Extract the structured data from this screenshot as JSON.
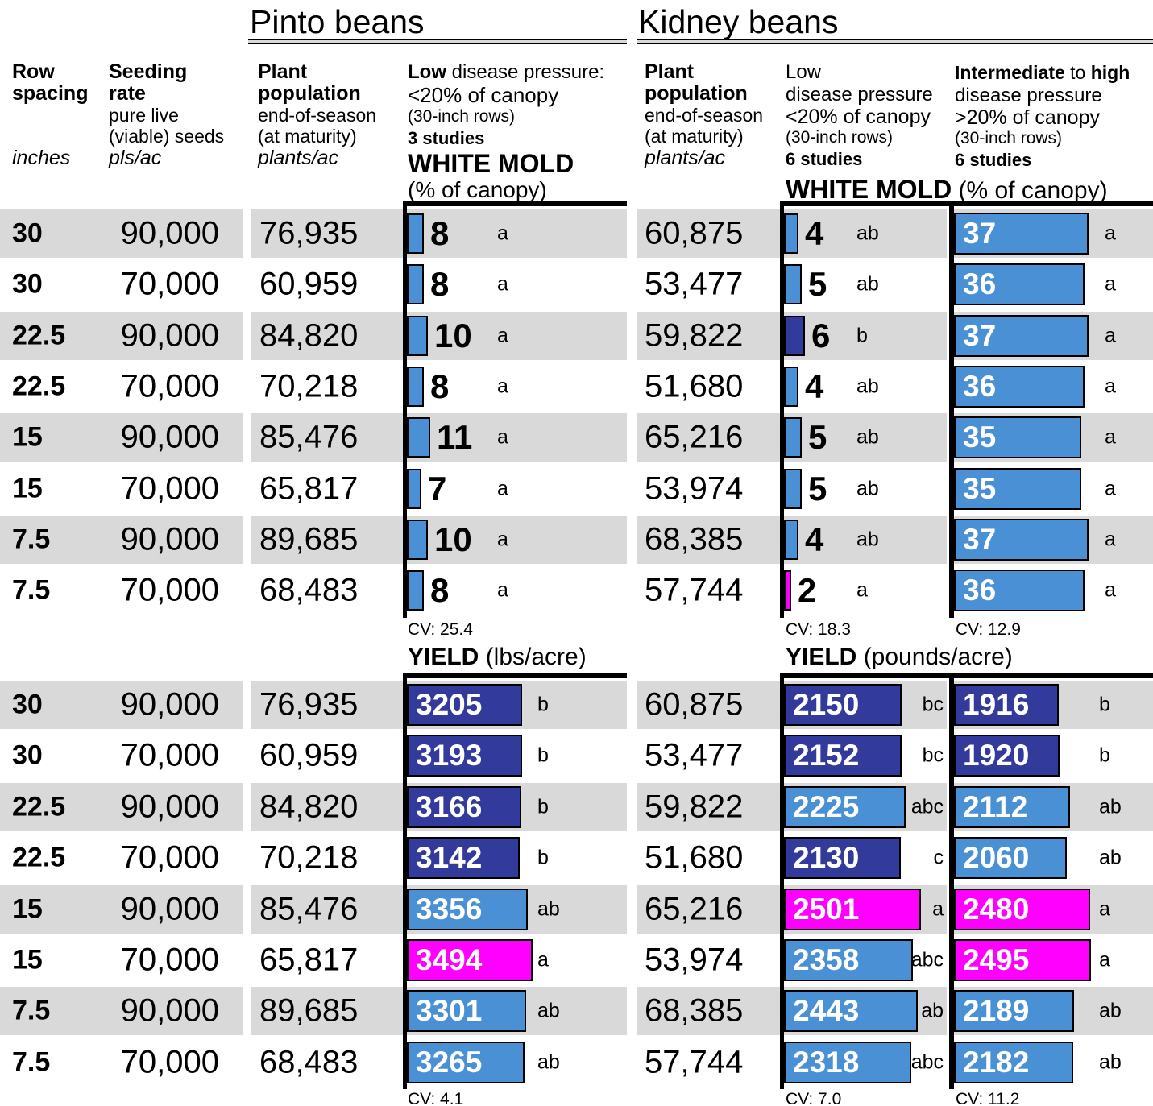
{
  "titles": {
    "pinto": "Pinto beans",
    "kidney": "Kidney beans"
  },
  "headers": {
    "col_spacing": {
      "l1": "Row",
      "l2": "spacing",
      "unit": "inches"
    },
    "col_rate": {
      "l1": "Seeding",
      "l2": "rate",
      "s1": "pure live",
      "s2": "(viable) seeds",
      "unit": "pls/ac"
    },
    "col_pop": {
      "l1": "Plant",
      "l2": "population",
      "s1": "end-of-season",
      "s2": "(at maturity)",
      "unit": "plants/ac"
    },
    "pinto_chart": {
      "b": "Low",
      "r": " disease pressure:",
      "canopy": "<20% of canopy",
      "rows": "(30-inch rows)",
      "studies": "3 studies",
      "wm_b": "WHITE MOLD",
      "wm_r": "(% of canopy)"
    },
    "kidney_low": {
      "b": "Low",
      "l2": "disease pressure",
      "canopy": "<20% of canopy",
      "rows": "(30-inch rows)",
      "studies": "6 studies"
    },
    "kidney_high": {
      "b1": "Intermediate",
      "r1": " to ",
      "b2": "high",
      "l2": "disease pressure",
      "canopy": ">20% of canopy",
      "rows": "(30-inch rows)",
      "studies": "6 studies"
    },
    "kidney_wm_title": {
      "b": "WHITE MOLD",
      "r": " (% of canopy)"
    },
    "yield_pinto": {
      "b": "YIELD",
      "r": " (lbs/acre)"
    },
    "yield_kidney": {
      "b": "YIELD",
      "r": " (pounds/acre)"
    }
  },
  "colors": {
    "blue": "#4a90d5",
    "navy": "#323a9c",
    "magenta": "#ff00ff",
    "stripe": "#d9d9d9",
    "bar_border": "#000000"
  },
  "chart_data": {
    "type": "bar",
    "row_labels": {
      "spacing": [
        "30",
        "30",
        "22.5",
        "22.5",
        "15",
        "15",
        "7.5",
        "7.5"
      ],
      "rate": [
        "90,000",
        "70,000",
        "90,000",
        "70,000",
        "90,000",
        "70,000",
        "90,000",
        "70,000"
      ]
    },
    "pinto_population": [
      "76,935",
      "60,959",
      "84,820",
      "70,218",
      "85,476",
      "65,817",
      "89,685",
      "68,483"
    ],
    "kidney_population": [
      "60,875",
      "53,477",
      "59,822",
      "51,680",
      "65,216",
      "53,974",
      "68,385",
      "57,744"
    ],
    "white_mold": {
      "pinto": {
        "values": [
          8,
          8,
          10,
          8,
          11,
          7,
          10,
          8
        ],
        "sig": [
          "a",
          "a",
          "a",
          "a",
          "a",
          "a",
          "a",
          "a"
        ],
        "colors": [
          "blue",
          "blue",
          "blue",
          "blue",
          "blue",
          "blue",
          "blue",
          "blue"
        ],
        "cv": "CV: 25.4"
      },
      "kidney_low": {
        "values": [
          4,
          5,
          6,
          4,
          5,
          5,
          4,
          2
        ],
        "sig": [
          "ab",
          "ab",
          "b",
          "ab",
          "ab",
          "ab",
          "ab",
          "a"
        ],
        "colors": [
          "blue",
          "blue",
          "navy",
          "blue",
          "blue",
          "blue",
          "blue",
          "magenta"
        ],
        "cv": "CV: 18.3"
      },
      "kidney_high": {
        "values": [
          37,
          36,
          37,
          36,
          35,
          35,
          37,
          36
        ],
        "sig": [
          "a",
          "a",
          "a",
          "a",
          "a",
          "a",
          "a",
          "a"
        ],
        "colors": [
          "blue",
          "blue",
          "blue",
          "blue",
          "blue",
          "blue",
          "blue",
          "blue"
        ],
        "cv": "CV: 12.9"
      }
    },
    "yield": {
      "pinto": {
        "values": [
          3205,
          3193,
          3166,
          3142,
          3356,
          3494,
          3301,
          3265
        ],
        "sig": [
          "b",
          "b",
          "b",
          "b",
          "ab",
          "a",
          "ab",
          "ab"
        ],
        "colors": [
          "navy",
          "navy",
          "navy",
          "navy",
          "blue",
          "magenta",
          "blue",
          "blue"
        ],
        "cv": "CV: 4.1"
      },
      "kidney_low": {
        "values": [
          2150,
          2152,
          2225,
          2130,
          2501,
          2358,
          2443,
          2318
        ],
        "sig": [
          "bc",
          "bc",
          "abc",
          "c",
          "a",
          "abc",
          "ab",
          "abc"
        ],
        "colors": [
          "navy",
          "navy",
          "blue",
          "navy",
          "magenta",
          "blue",
          "blue",
          "blue"
        ],
        "cv": "CV: 7.0"
      },
      "kidney_high": {
        "values": [
          1916,
          1920,
          2112,
          2060,
          2480,
          2495,
          2189,
          2182
        ],
        "sig": [
          "b",
          "b",
          "ab",
          "ab",
          "a",
          "a",
          "ab",
          "ab"
        ],
        "colors": [
          "navy",
          "navy",
          "blue",
          "blue",
          "magenta",
          "magenta",
          "blue",
          "blue"
        ],
        "cv": "CV: 11.2"
      }
    }
  }
}
